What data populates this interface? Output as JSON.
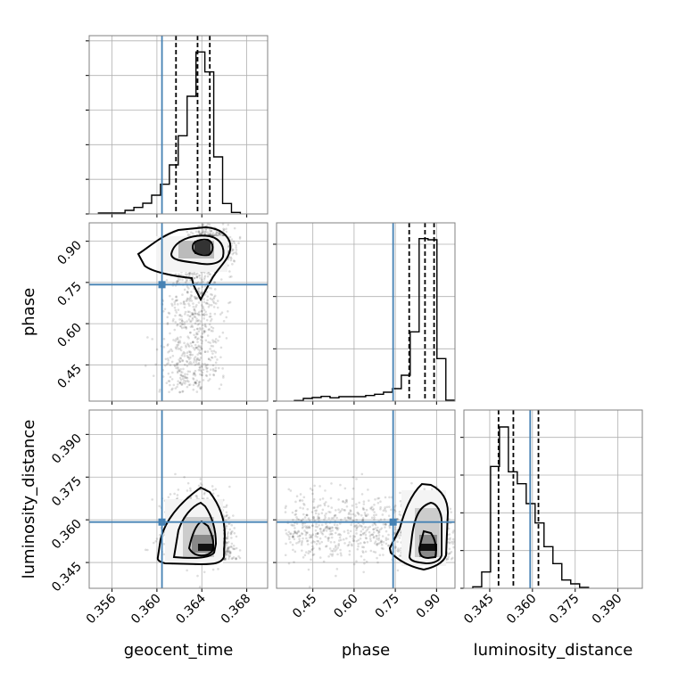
{
  "chart_data": {
    "type": "corner",
    "parameters": [
      "geocent_time",
      "phase",
      "luminosity_distance"
    ],
    "axis_labels": {
      "geocent_time": "geocent_time",
      "phase": "phase",
      "luminosity_distance": "luminosity_distance"
    },
    "ranges": {
      "geocent_time": [
        0.35397,
        0.36986
      ],
      "phase": [
        0.318,
        0.967
      ],
      "luminosity_distance": [
        0.33594,
        0.39856
      ]
    },
    "ticks": {
      "geocent_time": [
        "0.356",
        "0.360",
        "0.364",
        "0.368"
      ],
      "phase": [
        "0.45",
        "0.60",
        "0.75",
        "0.90"
      ],
      "luminosity_distance": [
        "0.345",
        "0.360",
        "0.375",
        "0.390"
      ]
    },
    "truths": {
      "geocent_time": 0.36045,
      "phase": 0.742,
      "luminosity_distance": 0.3592
    },
    "quantiles": {
      "geocent_time": [
        0.3617,
        0.36362,
        0.36471
      ],
      "phase": [
        0.8005,
        0.858,
        0.891
      ],
      "luminosity_distance": [
        0.3481,
        0.3533,
        0.3621
      ]
    },
    "histograms": {
      "geocent_time": {
        "bin_start": 0.35479,
        "bin_width": 0.00079,
        "ymax": 600,
        "ytick_step": 116.5,
        "counts": [
          3,
          3,
          3,
          12,
          22,
          36,
          63,
          100,
          165,
          263,
          396,
          545,
          478,
          192,
          35,
          5
        ]
      },
      "phase": {
        "bin_start": 0.383,
        "bin_width": 0.0324,
        "ymax": 600,
        "ytick_step": 176,
        "counts": [
          2,
          9,
          12,
          16,
          11,
          15,
          15,
          15,
          19,
          23,
          30,
          42,
          87,
          233,
          547,
          543,
          143,
          3
        ]
      },
      "luminosity_distance": {
        "bin_start": 0.33906,
        "bin_width": 0.003125,
        "ymax": 600,
        "ytick_step": 127,
        "counts": [
          5,
          55,
          410,
          543,
          392,
          352,
          285,
          220,
          140,
          83,
          28,
          15,
          3
        ]
      }
    },
    "samples_model": {
      "n": 2200,
      "main_fraction": 0.7,
      "main": {
        "geocent_time": [
          0.3647,
          0.0009
        ],
        "phase": [
          0.875,
          0.03
        ],
        "luminosity_distance_floor": 0.346,
        "luminosity_distance_scale": 0.008
      },
      "tail": {
        "geocent_time": [
          0.3632,
          0.0013
        ],
        "phase_uniform": [
          0.35,
          0.82
        ],
        "luminosity_distance": [
          0.357,
          0.006
        ]
      }
    },
    "colors": {
      "truth": "#4682b4",
      "hist": "#000000",
      "points": "#000000"
    }
  }
}
